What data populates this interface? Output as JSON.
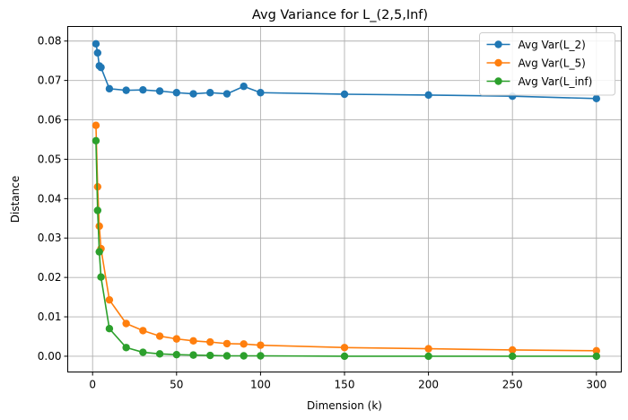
{
  "chart_data": {
    "type": "line",
    "title": "Avg Variance for L_(2,5,Inf)",
    "xlabel": "Dimension (k)",
    "ylabel": "Distance",
    "xlim": [
      -14.8,
      314.8
    ],
    "ylim": [
      -0.004,
      0.0837
    ],
    "xticks": [
      0,
      50,
      100,
      150,
      200,
      250,
      300
    ],
    "yticks": [
      0.0,
      0.01,
      0.02,
      0.03,
      0.04,
      0.05,
      0.06,
      0.07,
      0.08
    ],
    "ytick_labels": [
      "0.00",
      "0.01",
      "0.02",
      "0.03",
      "0.04",
      "0.05",
      "0.06",
      "0.07",
      "0.08"
    ],
    "grid": true,
    "legend_position": "top-right",
    "x": [
      2,
      3,
      4,
      5,
      10,
      20,
      30,
      40,
      50,
      60,
      70,
      80,
      90,
      100,
      150,
      200,
      250,
      300
    ],
    "series": [
      {
        "name": "Avg Var(L_2)",
        "color": "#1f77b4",
        "values": [
          0.0793,
          0.077,
          0.0737,
          0.0733,
          0.0679,
          0.0675,
          0.0676,
          0.0673,
          0.0669,
          0.0666,
          0.0669,
          0.0666,
          0.0685,
          0.0669,
          0.0665,
          0.0663,
          0.066,
          0.0654
        ]
      },
      {
        "name": "Avg Var(L_5)",
        "color": "#ff7f0e",
        "values": [
          0.0586,
          0.043,
          0.033,
          0.0273,
          0.0143,
          0.0083,
          0.0065,
          0.0051,
          0.0044,
          0.0039,
          0.0036,
          0.0032,
          0.0031,
          0.0028,
          0.0022,
          0.0019,
          0.0016,
          0.0014
        ]
      },
      {
        "name": "Avg Var(L_inf)",
        "color": "#2ca02c",
        "values": [
          0.0547,
          0.037,
          0.0265,
          0.0201,
          0.007,
          0.0022,
          0.001,
          0.0006,
          0.0004,
          0.0003,
          0.0002,
          0.0001,
          0.0001,
          0.0001,
          0.0,
          0.0,
          0.0,
          0.0
        ]
      }
    ]
  }
}
